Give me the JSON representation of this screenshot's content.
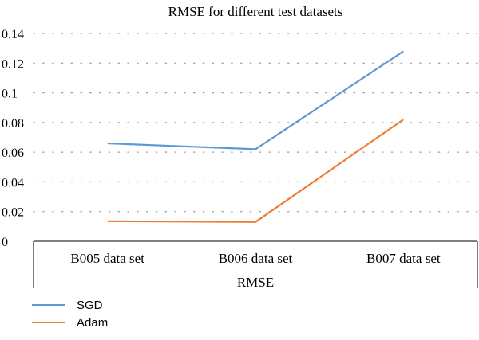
{
  "chart_data": {
    "type": "line",
    "title": "RMSE for different test datasets",
    "xlabel": "RMSE",
    "ylabel": "",
    "categories": [
      "B005 data set",
      "B006 data set",
      "B007 data set"
    ],
    "ylim": [
      0,
      0.14
    ],
    "yticks": [
      "0",
      "0.02",
      "0.04",
      "0.06",
      "0.08",
      "0.1",
      "0.12",
      "0.14"
    ],
    "grid": true,
    "legend_position": "bottom-left",
    "series": [
      {
        "name": "SGD",
        "color": "#5b9bd5",
        "values": [
          0.066,
          0.062,
          0.128
        ]
      },
      {
        "name": "Adam",
        "color": "#ed7d31",
        "values": [
          0.0135,
          0.013,
          0.082
        ]
      }
    ]
  }
}
